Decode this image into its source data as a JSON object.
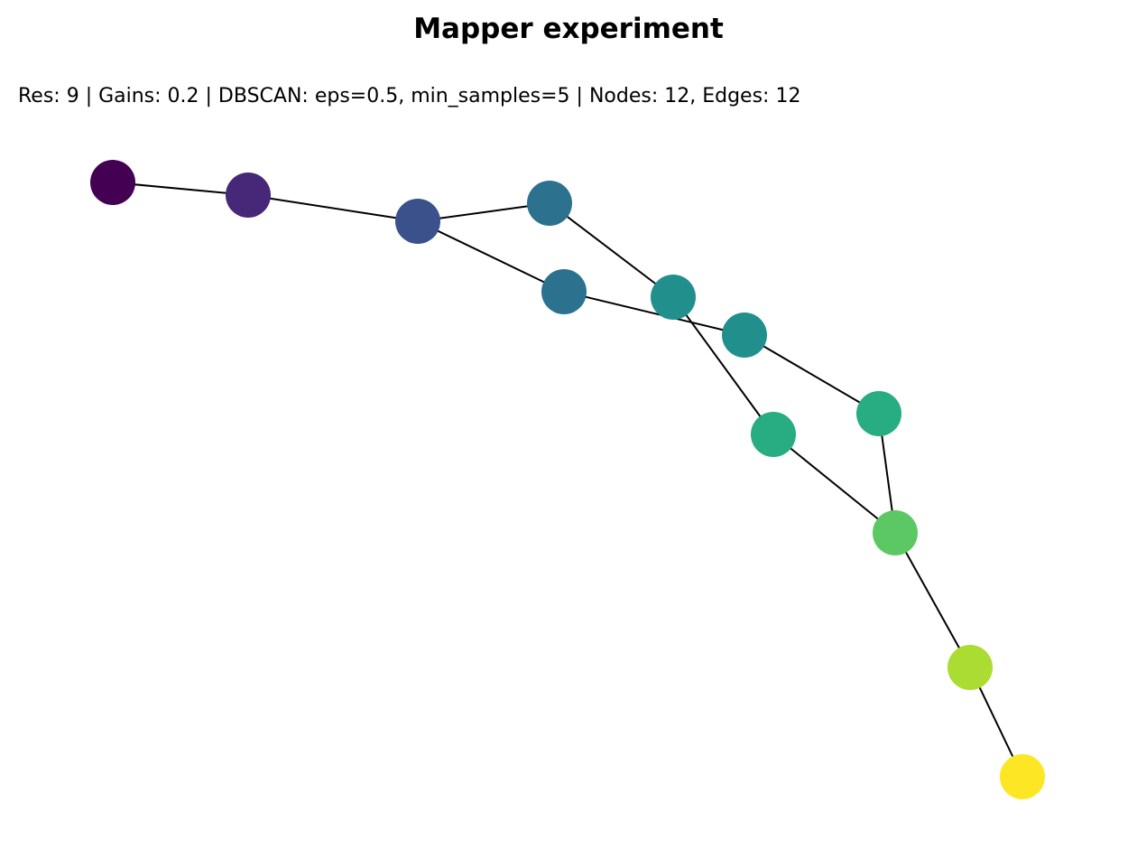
{
  "title": "Mapper experiment",
  "subtitle": "Res: 9 | Gains: 0.2 | DBSCAN: eps=0.5, min_samples=5 | Nodes: 12, Edges: 12",
  "graph": {
    "colormap": "viridis",
    "edge_color": "#000000",
    "nodes": [
      {
        "id": 0,
        "color": "#440154"
      },
      {
        "id": 1,
        "color": "#472777"
      },
      {
        "id": 2,
        "color": "#3b518b"
      },
      {
        "id": 3,
        "color": "#2c718e"
      },
      {
        "id": 4,
        "color": "#2c718e"
      },
      {
        "id": 5,
        "color": "#21908d"
      },
      {
        "id": 6,
        "color": "#21908d"
      },
      {
        "id": 7,
        "color": "#27ad81"
      },
      {
        "id": 8,
        "color": "#27ad81"
      },
      {
        "id": 9,
        "color": "#5cc863"
      },
      {
        "id": 10,
        "color": "#aadc32"
      },
      {
        "id": 11,
        "color": "#fde725"
      }
    ],
    "edges": [
      [
        0,
        1
      ],
      [
        1,
        2
      ],
      [
        2,
        3
      ],
      [
        2,
        4
      ],
      [
        3,
        5
      ],
      [
        4,
        6
      ],
      [
        5,
        7
      ],
      [
        6,
        8
      ],
      [
        7,
        9
      ],
      [
        8,
        9
      ],
      [
        9,
        10
      ],
      [
        10,
        11
      ]
    ]
  }
}
